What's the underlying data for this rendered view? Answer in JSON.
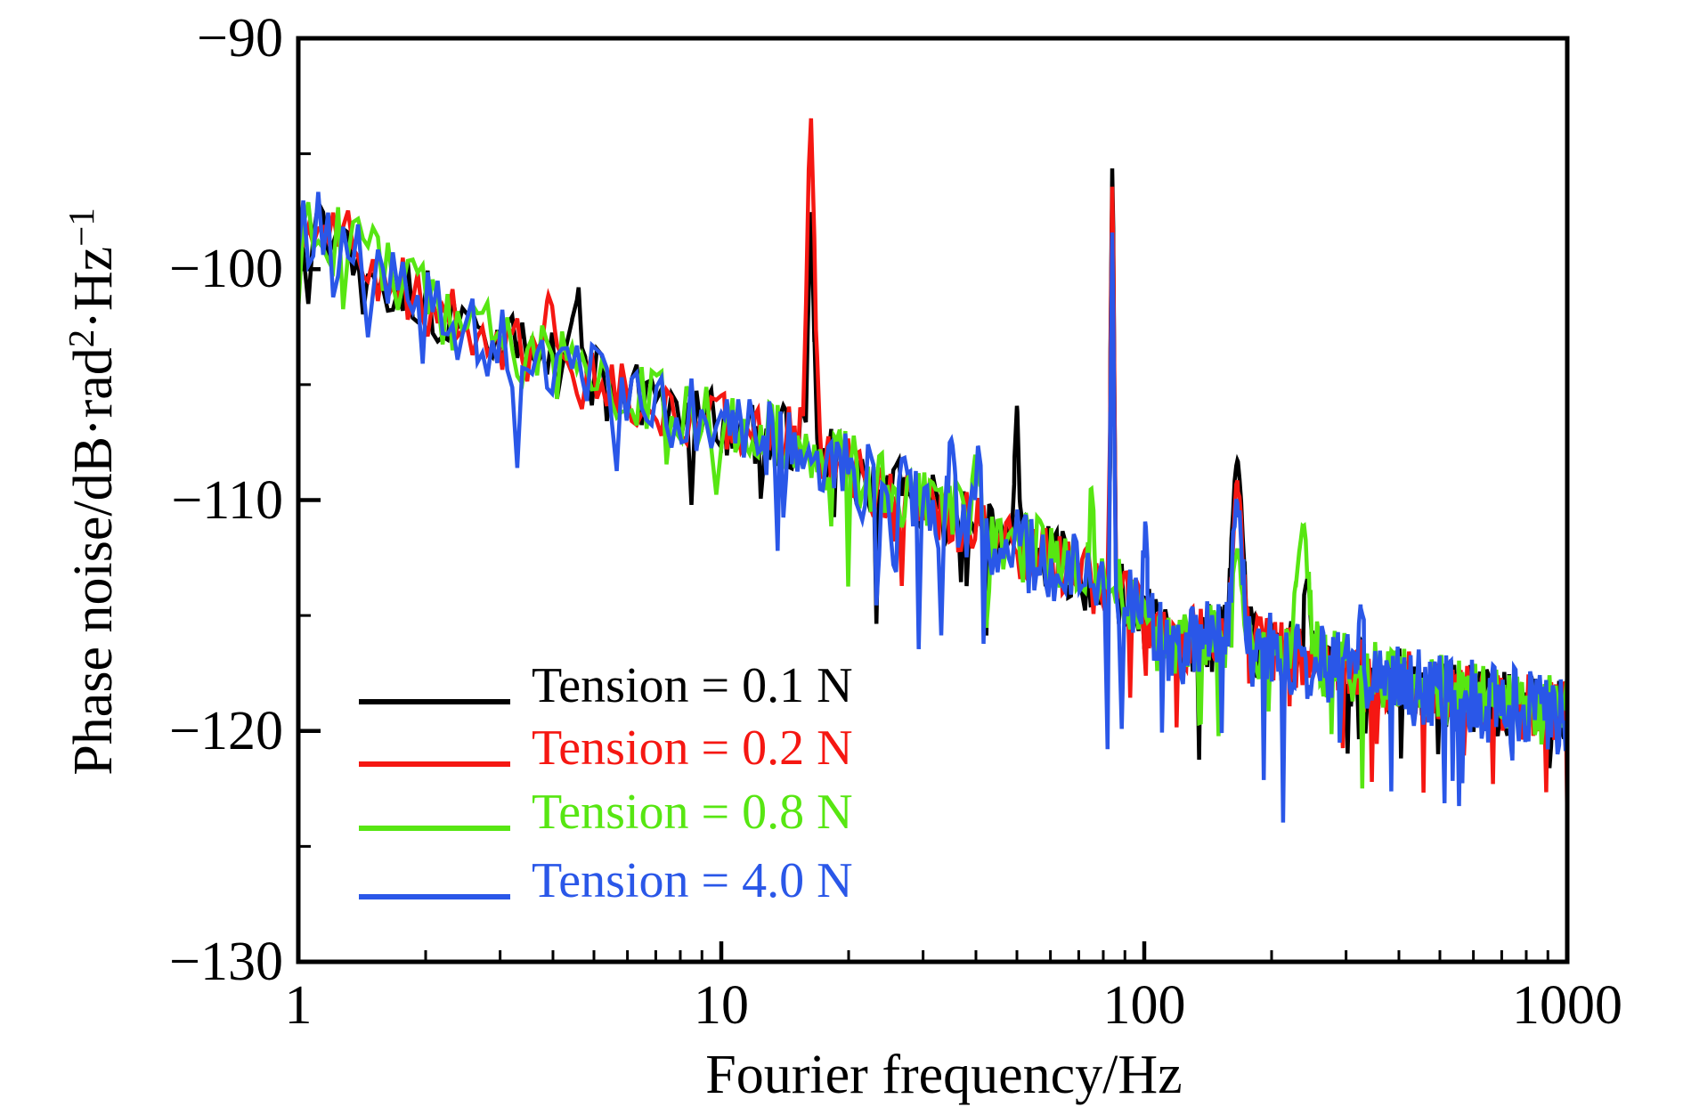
{
  "chart_data": {
    "type": "line",
    "title": "",
    "xlabel": "Fourier frequency/Hz",
    "ylabel": "Phase noise/dB·rad²·Hz⁻¹",
    "ylabel_parts": [
      {
        "text": "Phase noise/dB·rad",
        "sup": false
      },
      {
        "text": "2",
        "sup": true
      },
      {
        "text": "·Hz",
        "sup": false
      },
      {
        "text": "−1",
        "sup": true
      }
    ],
    "x_scale": "log",
    "xlim": [
      1,
      1000
    ],
    "ylim": [
      -130,
      -90
    ],
    "grid": false,
    "frame_color": "#000000",
    "background_color": "#ffffff",
    "legend_position": "inside-lower-left",
    "x_ticks": [
      {
        "value": 1,
        "label": "1"
      },
      {
        "value": 10,
        "label": "10"
      },
      {
        "value": 100,
        "label": "100"
      },
      {
        "value": 1000,
        "label": "1000"
      }
    ],
    "x_minor_mantissas": [
      2,
      3,
      4,
      5,
      6,
      7,
      8,
      9
    ],
    "y_ticks": [
      {
        "value": -90,
        "label": "−90"
      },
      {
        "value": -100,
        "label": "−100"
      },
      {
        "value": -110,
        "label": "−110"
      },
      {
        "value": -120,
        "label": "−120"
      },
      {
        "value": -130,
        "label": "−130"
      }
    ],
    "y_minor_values": [
      -95,
      -105,
      -115,
      -125
    ],
    "base_trend_log10f_db": [
      [
        0.0,
        -97.9
      ],
      [
        0.1,
        -98.6
      ],
      [
        0.2,
        -100.2
      ],
      [
        0.3,
        -101.5
      ],
      [
        0.48,
        -103.1
      ],
      [
        0.62,
        -104.3
      ],
      [
        0.8,
        -105.6
      ],
      [
        1.0,
        -106.7
      ],
      [
        1.15,
        -107.3
      ],
      [
        1.22,
        -107.9
      ],
      [
        1.35,
        -109.2
      ],
      [
        1.5,
        -110.3
      ],
      [
        1.65,
        -111.7
      ],
      [
        1.8,
        -112.7
      ],
      [
        1.95,
        -114.2
      ],
      [
        2.07,
        -116.2
      ],
      [
        2.15,
        -116.0
      ],
      [
        2.22,
        -116.2
      ],
      [
        2.32,
        -116.6
      ],
      [
        2.5,
        -117.5
      ],
      [
        2.7,
        -118.3
      ],
      [
        2.85,
        -118.8
      ],
      [
        3.0,
        -119.3
      ]
    ],
    "series": [
      {
        "name": "Tension = 0.1 N",
        "color": "#000000",
        "trend_offset_db": 0,
        "noise": {
          "amp_db": 1.5,
          "dip_chance": 0.045,
          "dip_depth_db": 5.0
        },
        "peaks": [
          {
            "freq_hz": 4.6,
            "peak_db": -100.9,
            "width_log10": 0.012
          },
          {
            "freq_hz": 16.3,
            "peak_db": -97.6,
            "width_log10": 0.006
          },
          {
            "freq_hz": 50,
            "peak_db": -106.0,
            "width_log10": 0.005
          },
          {
            "freq_hz": 84,
            "peak_db": -95.6,
            "width_log10": 0.004
          },
          {
            "freq_hz": 166,
            "peak_db": -108.4,
            "width_log10": 0.013
          },
          {
            "freq_hz": 243,
            "peak_db": -113.4,
            "width_log10": 0.009
          }
        ]
      },
      {
        "name": "Tension = 0.2 N",
        "color": "#f51712",
        "trend_offset_db": 0,
        "noise": {
          "amp_db": 1.45,
          "dip_chance": 0.04,
          "dip_depth_db": 4.0
        },
        "peaks": [
          {
            "freq_hz": 3.9,
            "peak_db": -101.3,
            "width_log10": 0.012
          },
          {
            "freq_hz": 16.3,
            "peak_db": -93.5,
            "width_log10": 0.009
          },
          {
            "freq_hz": 84,
            "peak_db": -96.5,
            "width_log10": 0.004
          },
          {
            "freq_hz": 166,
            "peak_db": -109.2,
            "width_log10": 0.011
          }
        ]
      },
      {
        "name": "Tension = 0.8 N",
        "color": "#57e612",
        "trend_offset_db": 0.1,
        "noise": {
          "amp_db": 1.55,
          "dip_chance": 0.04,
          "dip_depth_db": 4.5
        },
        "peaks": [
          {
            "freq_hz": 40,
            "peak_db": -108.2,
            "width_log10": 0.008
          },
          {
            "freq_hz": 75,
            "peak_db": -109.5,
            "width_log10": 0.005
          },
          {
            "freq_hz": 166,
            "peak_db": -112.3,
            "width_log10": 0.01
          },
          {
            "freq_hz": 237,
            "peak_db": -111.3,
            "width_log10": 0.013
          }
        ]
      },
      {
        "name": "Tension = 4.0 N",
        "color": "#2a57e8",
        "trend_offset_db": -0.1,
        "noise": {
          "amp_db": 1.75,
          "dip_chance": 0.05,
          "dip_depth_db": 6.0
        },
        "peaks": [
          {
            "freq_hz": 35,
            "peak_db": -107.2,
            "width_log10": 0.006
          },
          {
            "freq_hz": 40.5,
            "peak_db": -107.8,
            "width_log10": 0.006
          },
          {
            "freq_hz": 84,
            "peak_db": -98.2,
            "width_log10": 0.0035
          },
          {
            "freq_hz": 100.5,
            "peak_db": -110.6,
            "width_log10": 0.004
          },
          {
            "freq_hz": 166,
            "peak_db": -109.8,
            "width_log10": 0.011
          },
          {
            "freq_hz": 325,
            "peak_db": -114.4,
            "width_log10": 0.006
          }
        ]
      }
    ]
  }
}
